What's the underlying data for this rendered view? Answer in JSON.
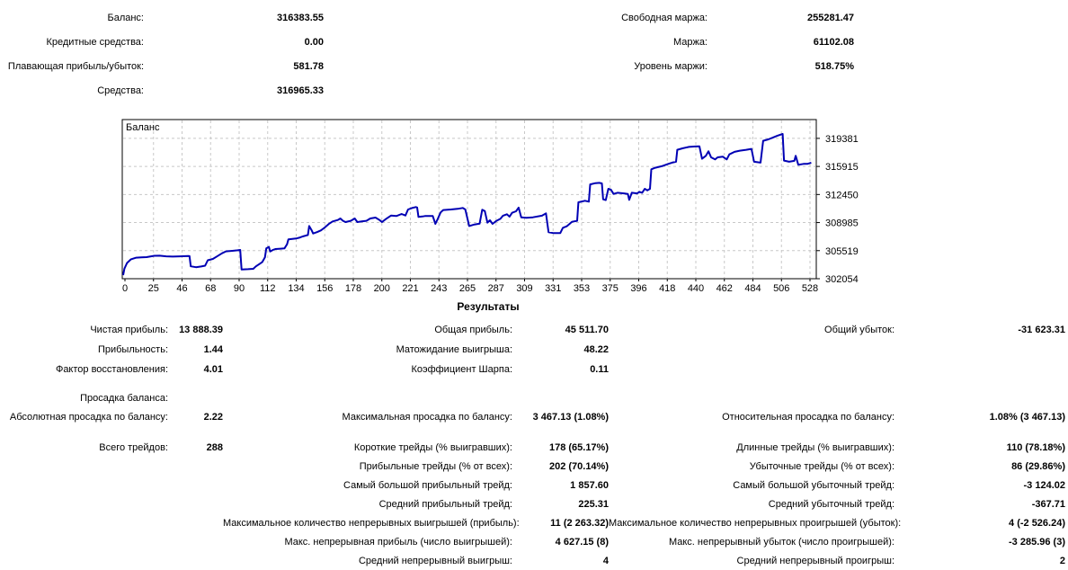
{
  "summary": {
    "rows": [
      [
        "Баланс:",
        "316383.55",
        "Свободная маржа:",
        "255281.47"
      ],
      [
        "Кредитные средства:",
        "0.00",
        "Маржа:",
        "61102.08"
      ],
      [
        "Плавающая прибыль/убыток:",
        "581.78",
        "Уровень маржи:",
        "518.75%"
      ],
      [
        "Средства:",
        "316965.33",
        "",
        ""
      ]
    ]
  },
  "results": {
    "heading": "Результаты",
    "profit_rows": [
      [
        "Чистая прибыль:",
        "13 888.39",
        "Общая прибыль:",
        "45 511.70",
        "Общий убыток:",
        "-31 623.31"
      ],
      [
        "Прибыльность:",
        "1.44",
        "Матожидание выигрыша:",
        "48.22",
        "",
        ""
      ],
      [
        "Фактор восстановления:",
        "4.01",
        "Коэффициент Шарпа:",
        "0.11",
        "",
        ""
      ]
    ],
    "drawdown_rows": [
      [
        "Просадка баланса:",
        "",
        "",
        "",
        "",
        ""
      ],
      [
        "Абсолютная просадка по балансу:",
        "2.22",
        "Максимальная просадка по балансу:",
        "3 467.13 (1.08%)",
        "Относительная просадка по балансу:",
        "1.08% (3 467.13)"
      ]
    ],
    "trade_rows": [
      [
        "Всего трейдов:",
        "288",
        "Короткие трейды (% выигравших):",
        "178 (65.17%)",
        "Длинные трейды (% выигравших):",
        "110 (78.18%)"
      ],
      [
        "",
        "",
        "Прибыльные трейды (% от всех):",
        "202 (70.14%)",
        "Убыточные трейды (% от всех):",
        "86 (29.86%)"
      ],
      [
        "",
        "",
        "Самый большой прибыльный трейд:",
        "1 857.60",
        "Самый большой убыточный трейд:",
        "-3 124.02"
      ],
      [
        "",
        "",
        "Средний прибыльный трейд:",
        "225.31",
        "Средний убыточный трейд:",
        "-367.71"
      ],
      [
        "",
        "",
        "Максимальное количество непрерывных выигрышей (прибыль):",
        "11 (2 263.32)",
        "Максимальное количество непрерывных проигрышей (убыток):",
        "4 (-2 526.24)"
      ],
      [
        "",
        "",
        "Макс. непрерывная прибыль (число выигрышей):",
        "4 627.15 (8)",
        "Макс. непрерывный убыток (число проигрышей):",
        "-3 285.96 (3)"
      ],
      [
        "",
        "",
        "Средний непрерывный выигрыш:",
        "4",
        "Средний непрерывный проигрыш:",
        "2"
      ]
    ]
  },
  "chart_data": {
    "type": "line",
    "title": "Баланс",
    "legend_position": "top-left-inside",
    "grid": "dashed",
    "line_color": "#0000B4",
    "grid_color": "#C8C8C8",
    "border_color": "#000000",
    "xlim": [
      0,
      529
    ],
    "ylim": [
      302054,
      321700
    ],
    "x_ticks": [
      0,
      25,
      46,
      68,
      90,
      112,
      134,
      156,
      178,
      200,
      221,
      243,
      265,
      287,
      309,
      331,
      353,
      375,
      396,
      418,
      440,
      462,
      484,
      506,
      528
    ],
    "y_ticks": [
      302054,
      305519,
      308985,
      312450,
      315915,
      319381
    ],
    "series": [
      {
        "name": "Баланс",
        "points": [
          [
            0,
            302495
          ],
          [
            1,
            303300
          ],
          [
            3,
            304000
          ],
          [
            6,
            304450
          ],
          [
            10,
            304650
          ],
          [
            14,
            304700
          ],
          [
            18,
            304720
          ],
          [
            24,
            304880
          ],
          [
            28,
            304900
          ],
          [
            33,
            304820
          ],
          [
            38,
            304780
          ],
          [
            44,
            304820
          ],
          [
            50,
            304860
          ],
          [
            51,
            304840
          ],
          [
            52,
            303590
          ],
          [
            56,
            303480
          ],
          [
            60,
            303560
          ],
          [
            63,
            303660
          ],
          [
            65,
            304330
          ],
          [
            69,
            304500
          ],
          [
            72,
            304800
          ],
          [
            76,
            305200
          ],
          [
            79,
            305430
          ],
          [
            84,
            305500
          ],
          [
            88,
            305560
          ],
          [
            90,
            305610
          ],
          [
            91,
            303200
          ],
          [
            96,
            303230
          ],
          [
            100,
            303270
          ],
          [
            102,
            303570
          ],
          [
            105,
            303900
          ],
          [
            107,
            304120
          ],
          [
            109,
            304680
          ],
          [
            110,
            305790
          ],
          [
            112,
            305980
          ],
          [
            113,
            305420
          ],
          [
            115,
            305600
          ],
          [
            117,
            305720
          ],
          [
            121,
            305760
          ],
          [
            124,
            305790
          ],
          [
            126,
            306300
          ],
          [
            127,
            306900
          ],
          [
            130,
            306960
          ],
          [
            133,
            307010
          ],
          [
            136,
            307150
          ],
          [
            138,
            307270
          ],
          [
            141,
            307400
          ],
          [
            142,
            307450
          ],
          [
            143,
            308560
          ],
          [
            145,
            308000
          ],
          [
            146,
            307640
          ],
          [
            149,
            307800
          ],
          [
            152,
            308010
          ],
          [
            155,
            308380
          ],
          [
            158,
            308800
          ],
          [
            161,
            309120
          ],
          [
            165,
            309300
          ],
          [
            167,
            309490
          ],
          [
            169,
            309200
          ],
          [
            171,
            309050
          ],
          [
            175,
            309200
          ],
          [
            178,
            309490
          ],
          [
            180,
            309050
          ],
          [
            184,
            309150
          ],
          [
            187,
            309200
          ],
          [
            190,
            309490
          ],
          [
            194,
            309600
          ],
          [
            197,
            309300
          ],
          [
            199,
            309050
          ],
          [
            202,
            309420
          ],
          [
            206,
            309860
          ],
          [
            210,
            309790
          ],
          [
            214,
            310050
          ],
          [
            217,
            309860
          ],
          [
            219,
            310600
          ],
          [
            222,
            310780
          ],
          [
            225,
            310900
          ],
          [
            226,
            310850
          ],
          [
            227,
            309680
          ],
          [
            230,
            309740
          ],
          [
            232,
            309790
          ],
          [
            238,
            309790
          ],
          [
            240,
            308820
          ],
          [
            242,
            309500
          ],
          [
            244,
            310230
          ],
          [
            246,
            310530
          ],
          [
            252,
            310600
          ],
          [
            257,
            310680
          ],
          [
            261,
            310790
          ],
          [
            263,
            310600
          ],
          [
            266,
            308560
          ],
          [
            270,
            308750
          ],
          [
            274,
            308850
          ],
          [
            276,
            310570
          ],
          [
            278,
            310400
          ],
          [
            280,
            308970
          ],
          [
            282,
            309270
          ],
          [
            284,
            308820
          ],
          [
            287,
            309200
          ],
          [
            290,
            309450
          ],
          [
            292,
            309830
          ],
          [
            295,
            310010
          ],
          [
            297,
            309710
          ],
          [
            299,
            310190
          ],
          [
            302,
            310380
          ],
          [
            304,
            310830
          ],
          [
            306,
            309640
          ],
          [
            310,
            309570
          ],
          [
            315,
            309640
          ],
          [
            322,
            309830
          ],
          [
            325,
            310120
          ],
          [
            327,
            307790
          ],
          [
            331,
            307680
          ],
          [
            336,
            307680
          ],
          [
            338,
            308340
          ],
          [
            341,
            308530
          ],
          [
            345,
            309080
          ],
          [
            349,
            309200
          ],
          [
            350,
            311490
          ],
          [
            355,
            311680
          ],
          [
            358,
            311570
          ],
          [
            359,
            313700
          ],
          [
            363,
            313850
          ],
          [
            366,
            313890
          ],
          [
            368,
            313820
          ],
          [
            369,
            311860
          ],
          [
            371,
            311750
          ],
          [
            373,
            313150
          ],
          [
            375,
            313040
          ],
          [
            377,
            312520
          ],
          [
            380,
            312670
          ],
          [
            385,
            312590
          ],
          [
            388,
            312520
          ],
          [
            389,
            311790
          ],
          [
            391,
            312670
          ],
          [
            395,
            312590
          ],
          [
            397,
            312780
          ],
          [
            399,
            312670
          ],
          [
            401,
            313150
          ],
          [
            403,
            312960
          ],
          [
            405,
            313150
          ],
          [
            406,
            315560
          ],
          [
            409,
            315750
          ],
          [
            414,
            315940
          ],
          [
            419,
            316230
          ],
          [
            422,
            316380
          ],
          [
            425,
            316490
          ],
          [
            426,
            317970
          ],
          [
            430,
            318150
          ],
          [
            435,
            318330
          ],
          [
            440,
            318380
          ],
          [
            443,
            318400
          ],
          [
            445,
            316860
          ],
          [
            448,
            317230
          ],
          [
            450,
            317780
          ],
          [
            452,
            317040
          ],
          [
            455,
            316780
          ],
          [
            457,
            317040
          ],
          [
            461,
            317120
          ],
          [
            464,
            316780
          ],
          [
            466,
            317410
          ],
          [
            470,
            317710
          ],
          [
            474,
            317860
          ],
          [
            479,
            317970
          ],
          [
            483,
            318080
          ],
          [
            485,
            316490
          ],
          [
            490,
            316380
          ],
          [
            492,
            319080
          ],
          [
            496,
            319260
          ],
          [
            499,
            319450
          ],
          [
            503,
            319710
          ],
          [
            507,
            319920
          ],
          [
            508,
            316640
          ],
          [
            512,
            316490
          ],
          [
            516,
            316600
          ],
          [
            517,
            317230
          ],
          [
            519,
            316120
          ],
          [
            523,
            316230
          ],
          [
            526,
            316230
          ],
          [
            529,
            316383
          ]
        ]
      }
    ]
  }
}
